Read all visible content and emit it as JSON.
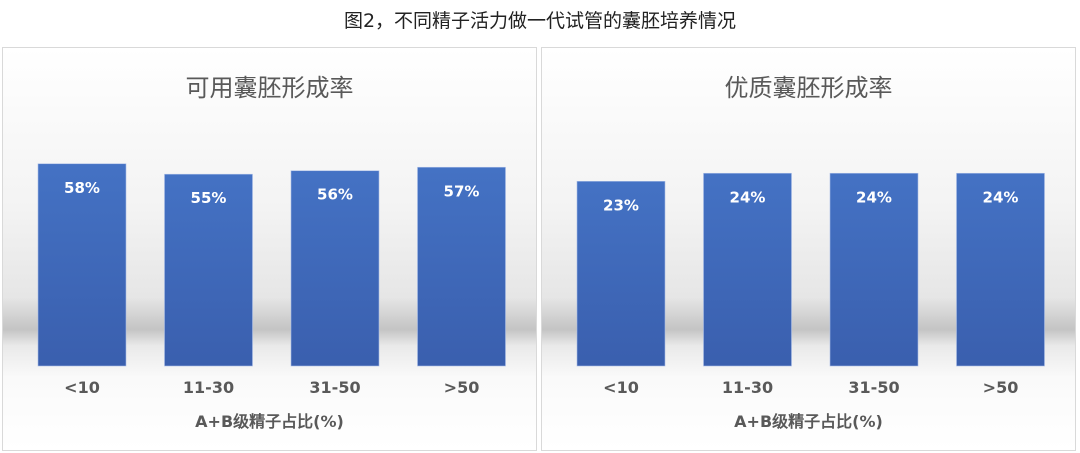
{
  "title": "图2，不同精子活力做一代试管的囊胚培养情况",
  "chart_data": [
    {
      "type": "bar",
      "title": "可用囊胚形成率",
      "categories": [
        "<10",
        "11-30",
        "31-50",
        ">50"
      ],
      "values": [
        58,
        55,
        56,
        57
      ],
      "data_labels": [
        "58%",
        "55%",
        "56%",
        "57%"
      ],
      "xlabel": "A+B级精子占比(%)",
      "ylabel": "",
      "ylim": [
        0,
        76
      ],
      "unit": "%",
      "grid": false,
      "bar_color": "#4472c4"
    },
    {
      "type": "bar",
      "title": "优质囊胚形成率",
      "categories": [
        "<10",
        "11-30",
        "31-50",
        ">50"
      ],
      "values": [
        23,
        24,
        24,
        24
      ],
      "data_labels": [
        "23%",
        "24%",
        "24%",
        "24%"
      ],
      "xlabel": "A+B级精子占比(%)",
      "ylabel": "",
      "ylim": [
        0,
        33
      ],
      "unit": "%",
      "grid": false,
      "bar_color": "#4472c4"
    }
  ]
}
